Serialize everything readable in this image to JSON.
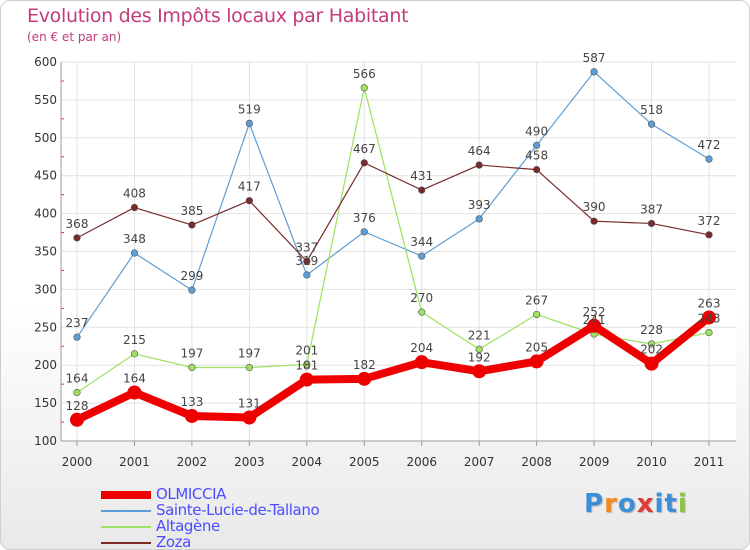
{
  "chart_data": {
    "type": "line",
    "title": "Evolution des Impôts locaux par Habitant",
    "subtitle": "(en € et par an)",
    "categories": [
      "2000",
      "2001",
      "2002",
      "2003",
      "2004",
      "2005",
      "2006",
      "2007",
      "2008",
      "2009",
      "2010",
      "2011"
    ],
    "y_ticks": [
      100,
      150,
      200,
      250,
      300,
      350,
      400,
      450,
      500,
      550,
      600
    ],
    "ylim": [
      100,
      600
    ],
    "grid": true,
    "legend_position": "bottom-left",
    "series": [
      {
        "name": "OLMICCIA",
        "color": "#ee0000",
        "emphasis": true,
        "values": [
          128,
          164,
          133,
          131,
          181,
          182,
          204,
          192,
          205,
          252,
          202,
          263
        ],
        "labels": [
          "128",
          "164",
          "133",
          "131",
          "181",
          "182",
          "204",
          "192",
          "205",
          "252",
          "202",
          "263"
        ]
      },
      {
        "name": "Sainte-Lucie-de-Tallano",
        "color": "#5e9ed6",
        "values": [
          237,
          348,
          299,
          519,
          319,
          376,
          344,
          393,
          490,
          587,
          518,
          472
        ],
        "labels": [
          "237",
          "348",
          "299",
          "519",
          "319",
          "376",
          "344",
          "393",
          "490",
          "587",
          "518",
          "472"
        ]
      },
      {
        "name": "Altagène",
        "color": "#9ee05f",
        "values": [
          164,
          215,
          197,
          197,
          201,
          566,
          270,
          221,
          267,
          241,
          228,
          243
        ],
        "labels": [
          "164",
          "215",
          "197",
          "197",
          "201",
          "566",
          "270",
          "221",
          "267",
          "241",
          "228",
          "243"
        ]
      },
      {
        "name": "Zoza",
        "color": "#7a2a2a",
        "values": [
          368,
          408,
          385,
          417,
          337,
          467,
          431,
          464,
          458,
          390,
          387,
          372
        ],
        "labels": [
          "368",
          "408",
          "385",
          "417",
          "337",
          "467",
          "431",
          "464",
          "458",
          "390",
          "387",
          "372"
        ]
      }
    ]
  },
  "logo": {
    "text": "Proxiti",
    "colors": [
      "#3a8fd8",
      "#f08a1c",
      "#3a8fd8",
      "#e03a3a",
      "#3a8fd8",
      "#3a8fd8",
      "#8cc63f"
    ]
  }
}
